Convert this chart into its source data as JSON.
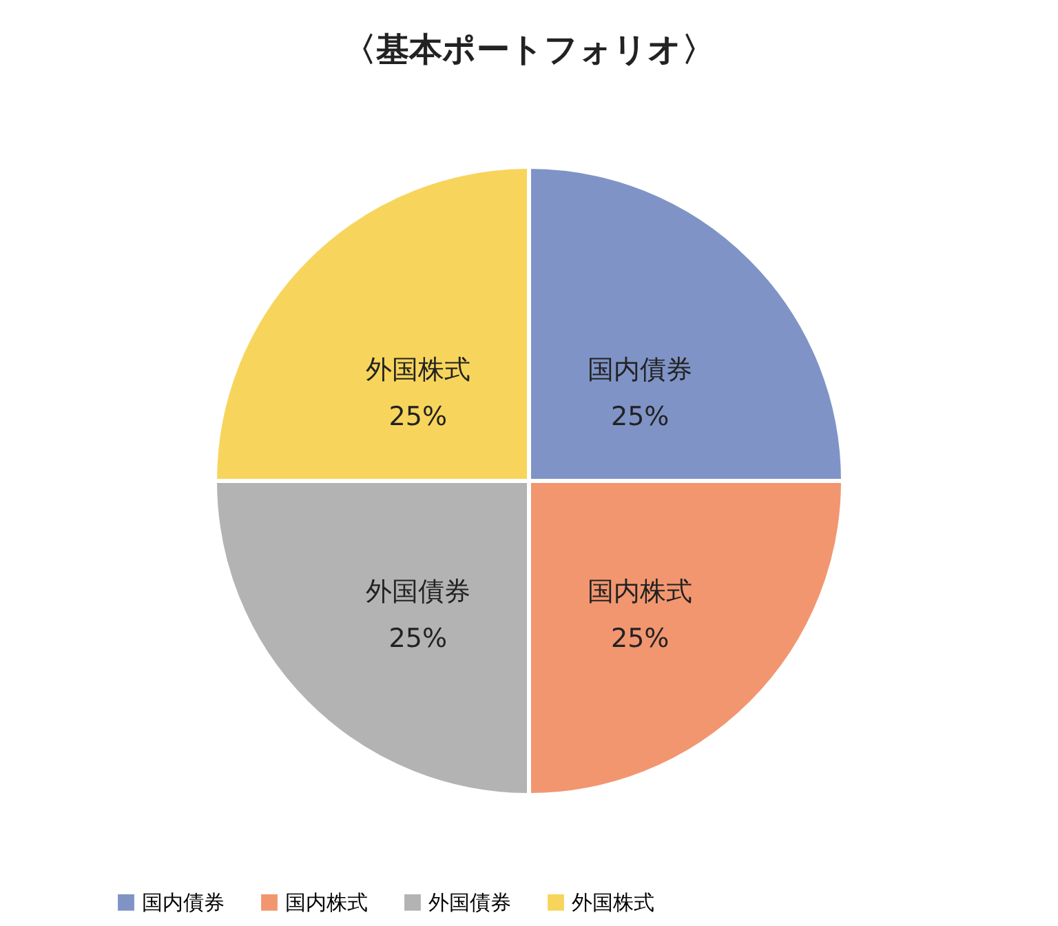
{
  "chart_data": {
    "type": "pie",
    "title": "〈基本ポートフォリオ〉",
    "categories": [
      "国内債券",
      "国内株式",
      "外国債券",
      "外国株式"
    ],
    "values": [
      25,
      25,
      25,
      25
    ],
    "colors": [
      "#7f93c6",
      "#f29670",
      "#b3b3b3",
      "#f7d55c"
    ],
    "value_labels": [
      "25%",
      "25%",
      "25%",
      "25%"
    ],
    "legend": "bottom"
  }
}
